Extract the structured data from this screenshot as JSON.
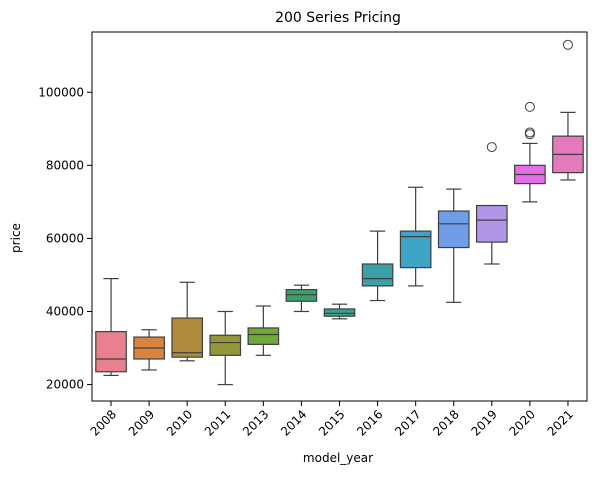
{
  "chart_data": {
    "type": "box",
    "title": "200 Series Pricing",
    "xlabel": "model_year",
    "ylabel": "price",
    "ylim": [
      15500,
      116500
    ],
    "yticks": [
      20000,
      40000,
      60000,
      80000,
      100000
    ],
    "ytick_labels": [
      "20000",
      "40000",
      "60000",
      "80000",
      "100000"
    ],
    "grid": false,
    "legend": "none",
    "categories": [
      "2008",
      "2009",
      "2010",
      "2011",
      "2013",
      "2014",
      "2015",
      "2016",
      "2017",
      "2018",
      "2019",
      "2020",
      "2021"
    ],
    "series": [
      {
        "category": "2008",
        "whisker_low": 22500,
        "q1": 23500,
        "median": 27000,
        "q3": 34500,
        "whisker_high": 49000,
        "outliers": [],
        "color": "#e8808f"
      },
      {
        "category": "2009",
        "whisker_low": 24000,
        "q1": 27000,
        "median": 30000,
        "q3": 33000,
        "whisker_high": 35000,
        "outliers": [],
        "color": "#d9833f"
      },
      {
        "category": "2010",
        "whisker_low": 26500,
        "q1": 27500,
        "median": 28700,
        "q3": 38200,
        "whisker_high": 48000,
        "outliers": [],
        "color": "#b08a3c"
      },
      {
        "category": "2011",
        "whisker_low": 20000,
        "q1": 28000,
        "median": 31500,
        "q3": 33500,
        "whisker_high": 40000,
        "outliers": [],
        "color": "#93973a"
      },
      {
        "category": "2013",
        "whisker_low": 28000,
        "q1": 31000,
        "median": 33700,
        "q3": 35500,
        "whisker_high": 41500,
        "outliers": [],
        "color": "#6fa83b"
      },
      {
        "category": "2014",
        "whisker_low": 40000,
        "q1": 42800,
        "median": 44600,
        "q3": 46000,
        "whisker_high": 47200,
        "outliers": [],
        "color": "#3a9f6a"
      },
      {
        "category": "2015",
        "whisker_low": 38000,
        "q1": 38700,
        "median": 39500,
        "q3": 40700,
        "whisker_high": 42000,
        "outliers": [],
        "color": "#3aa08d"
      },
      {
        "category": "2016",
        "whisker_low": 43000,
        "q1": 47000,
        "median": 49000,
        "q3": 53000,
        "whisker_high": 62000,
        "outliers": [],
        "color": "#3aa2a6"
      },
      {
        "category": "2017",
        "whisker_low": 47000,
        "q1": 52000,
        "median": 60500,
        "q3": 62000,
        "whisker_high": 74000,
        "outliers": [],
        "color": "#3ea4c6"
      },
      {
        "category": "2018",
        "whisker_low": 42500,
        "q1": 57500,
        "median": 64000,
        "q3": 67500,
        "whisker_high": 73500,
        "outliers": [],
        "color": "#6f9de8"
      },
      {
        "category": "2019",
        "whisker_low": 53000,
        "q1": 59000,
        "median": 65000,
        "q3": 69000,
        "whisker_high": 69000,
        "outliers": [
          85000
        ],
        "color": "#b195e8"
      },
      {
        "category": "2020",
        "whisker_low": 70000,
        "q1": 75000,
        "median": 77500,
        "q3": 80000,
        "whisker_high": 86000,
        "outliers": [
          88500,
          89000,
          96000
        ],
        "color": "#e46fe6"
      },
      {
        "category": "2021",
        "whisker_low": 76000,
        "q1": 78000,
        "median": 83000,
        "q3": 88000,
        "whisker_high": 94500,
        "outliers": [
          113000
        ],
        "color": "#e579bd"
      }
    ]
  }
}
